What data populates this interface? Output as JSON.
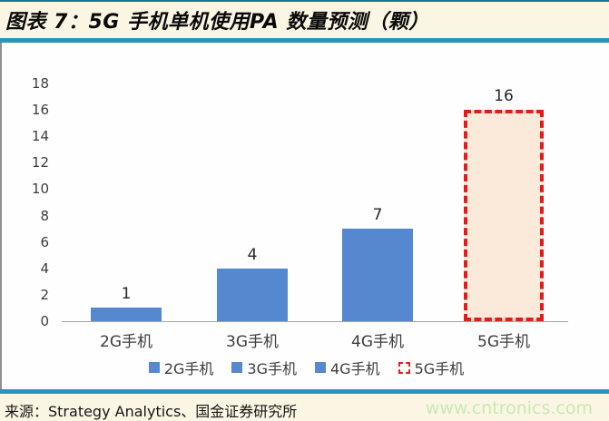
{
  "header": {
    "title": "图表 7：5G 手机单机使用PA 数量预测（颗）"
  },
  "footer": {
    "source": "来源：Strategy Analytics、国金证券研究所",
    "watermark": "www.cntronics.com"
  },
  "colors": {
    "page_bg": "#FBF5E3",
    "rule_teal": "#2796BE",
    "bar_blue": "#5588CE",
    "accent_red": "#E21B1B",
    "bar_5g_fill": "#FBE9DA",
    "axis_gray": "#A6A6A6",
    "watermark_green": "#C8E9B5"
  },
  "chart_data": {
    "type": "bar",
    "title": "5G 手机单机使用PA 数量预测（颗）",
    "categories": [
      "2G手机",
      "3G手机",
      "4G手机",
      "5G手机"
    ],
    "values": [
      1,
      4,
      7,
      16
    ],
    "data_labels": [
      "1",
      "4",
      "7",
      "16"
    ],
    "xlabel": "",
    "ylabel": "",
    "ylim": [
      0,
      18
    ],
    "yticks": [
      0,
      2,
      4,
      6,
      8,
      10,
      12,
      14,
      16,
      18
    ],
    "grid": false,
    "series_styles": [
      "solid",
      "solid",
      "solid",
      "dashed-outline"
    ],
    "legend_position": "bottom",
    "legend": [
      {
        "label": "2G手机",
        "marker": "solid-blue"
      },
      {
        "label": "3G手机",
        "marker": "solid-blue"
      },
      {
        "label": "4G手机",
        "marker": "solid-blue"
      },
      {
        "label": "5G手机",
        "marker": "dashed-red"
      }
    ]
  }
}
